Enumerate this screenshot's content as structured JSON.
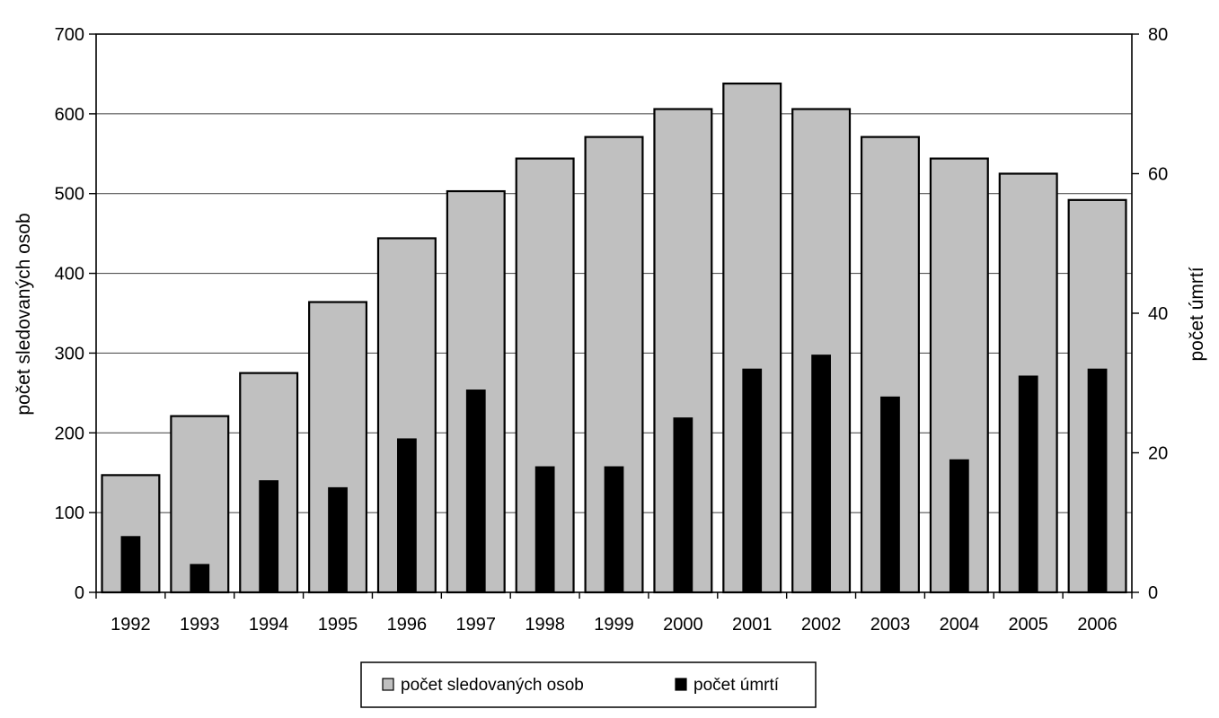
{
  "chart_data": {
    "type": "bar",
    "title": "",
    "categories": [
      "1992",
      "1993",
      "1994",
      "1995",
      "1996",
      "1997",
      "1998",
      "1999",
      "2000",
      "2001",
      "2002",
      "2003",
      "2004",
      "2005",
      "2006"
    ],
    "series": [
      {
        "name": "počet sledovaných osob",
        "axis": "left",
        "color": "#c0c0c0",
        "values": [
          147,
          221,
          275,
          364,
          444,
          503,
          544,
          571,
          606,
          638,
          606,
          571,
          544,
          525,
          492
        ]
      },
      {
        "name": "počet úmrtí",
        "axis": "right",
        "color": "#000000",
        "values": [
          8,
          4,
          16,
          15,
          22,
          29,
          18,
          18,
          25,
          32,
          34,
          28,
          19,
          31,
          32
        ]
      }
    ],
    "ylabel_left": "počet sledovaných osob",
    "ylabel_right": "počet úmrtí",
    "ylim_left": [
      0,
      700
    ],
    "ylim_right": [
      0,
      80
    ],
    "yticks_left": [
      "0",
      "100",
      "200",
      "300",
      "400",
      "500",
      "600",
      "700"
    ],
    "yticks_right": [
      "0",
      "20",
      "40",
      "60",
      "80"
    ],
    "grid": true,
    "legend_position": "bottom",
    "legend": [
      {
        "label": "počet sledovaných osob",
        "color": "#c0c0c0"
      },
      {
        "label": "počet úmrtí",
        "color": "#000000"
      }
    ]
  }
}
